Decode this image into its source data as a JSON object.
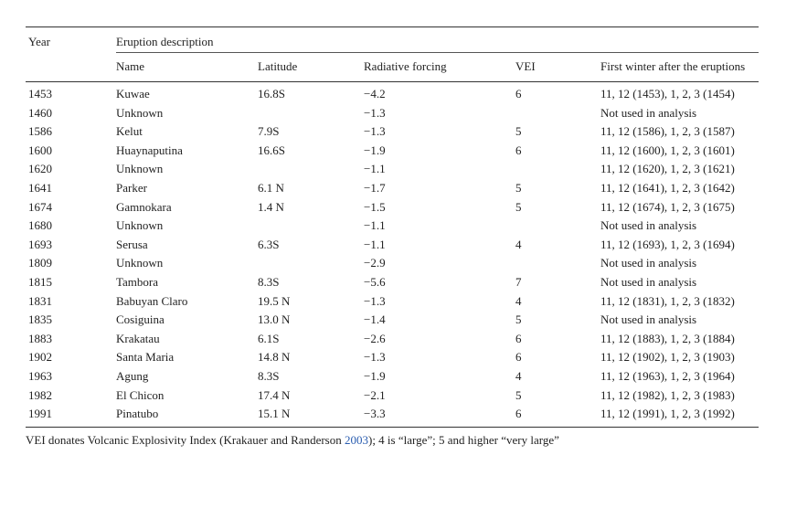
{
  "headers": {
    "year": "Year",
    "group": "Eruption description",
    "name": "Name",
    "latitude": "Latitude",
    "radiative_forcing": "Radiative forcing",
    "vei": "VEI",
    "first_winter": "First winter after the eruptions"
  },
  "rows": [
    {
      "year": "1453",
      "name": "Kuwae",
      "latitude": "16.8S",
      "rf": "−4.2",
      "vei": "6",
      "winter": "11, 12 (1453), 1, 2, 3 (1454)"
    },
    {
      "year": "1460",
      "name": "Unknown",
      "latitude": "",
      "rf": "−1.3",
      "vei": "",
      "winter": "Not used in analysis"
    },
    {
      "year": "1586",
      "name": "Kelut",
      "latitude": "7.9S",
      "rf": "−1.3",
      "vei": "5",
      "winter": "11, 12 (1586), 1, 2, 3 (1587)"
    },
    {
      "year": "1600",
      "name": "Huaynaputina",
      "latitude": "16.6S",
      "rf": "−1.9",
      "vei": "6",
      "winter": "11, 12 (1600), 1, 2, 3 (1601)"
    },
    {
      "year": "1620",
      "name": "Unknown",
      "latitude": "",
      "rf": "−1.1",
      "vei": "",
      "winter": "11, 12 (1620), 1, 2, 3 (1621)"
    },
    {
      "year": "1641",
      "name": "Parker",
      "latitude": "6.1 N",
      "rf": "−1.7",
      "vei": "5",
      "winter": "11, 12 (1641), 1, 2, 3 (1642)"
    },
    {
      "year": "1674",
      "name": "Gamnokara",
      "latitude": "1.4 N",
      "rf": "−1.5",
      "vei": "5",
      "winter": "11, 12 (1674), 1, 2, 3 (1675)"
    },
    {
      "year": "1680",
      "name": "Unknown",
      "latitude": "",
      "rf": "−1.1",
      "vei": "",
      "winter": "Not used in analysis"
    },
    {
      "year": "1693",
      "name": "Serusa",
      "latitude": "6.3S",
      "rf": "−1.1",
      "vei": "4",
      "winter": "11, 12 (1693), 1, 2, 3 (1694)"
    },
    {
      "year": "1809",
      "name": "Unknown",
      "latitude": "",
      "rf": "−2.9",
      "vei": "",
      "winter": "Not used in analysis"
    },
    {
      "year": "1815",
      "name": "Tambora",
      "latitude": "8.3S",
      "rf": "−5.6",
      "vei": "7",
      "winter": "Not used in analysis"
    },
    {
      "year": "1831",
      "name": "Babuyan Claro",
      "latitude": "19.5 N",
      "rf": "−1.3",
      "vei": "4",
      "winter": "11, 12 (1831), 1, 2, 3 (1832)"
    },
    {
      "year": "1835",
      "name": "Cosiguina",
      "latitude": "13.0 N",
      "rf": "−1.4",
      "vei": "5",
      "winter": "Not used in analysis"
    },
    {
      "year": "1883",
      "name": "Krakatau",
      "latitude": "6.1S",
      "rf": "−2.6",
      "vei": "6",
      "winter": "11, 12 (1883), 1, 2, 3 (1884)"
    },
    {
      "year": "1902",
      "name": "Santa Maria",
      "latitude": "14.8 N",
      "rf": "−1.3",
      "vei": "6",
      "winter": "11, 12 (1902), 1, 2, 3 (1903)"
    },
    {
      "year": "1963",
      "name": "Agung",
      "latitude": "8.3S",
      "rf": "−1.9",
      "vei": "4",
      "winter": "11, 12 (1963), 1, 2, 3 (1964)"
    },
    {
      "year": "1982",
      "name": "El Chicon",
      "latitude": "17.4 N",
      "rf": "−2.1",
      "vei": "5",
      "winter": "11, 12 (1982), 1, 2, 3 (1983)"
    },
    {
      "year": "1991",
      "name": "Pinatubo",
      "latitude": "15.1 N",
      "rf": "−3.3",
      "vei": "6",
      "winter": "11, 12 (1991), 1, 2, 3 (1992)"
    }
  ],
  "footnote": {
    "before": "VEI donates Volcanic Explosivity Index (Krakauer and Randerson ",
    "citation": "2003",
    "after": "); 4 is “large”; 5 and higher “very large”"
  },
  "colors": {
    "citation_link": "#2a5db0",
    "text": "#222222",
    "rule": "#333333"
  }
}
